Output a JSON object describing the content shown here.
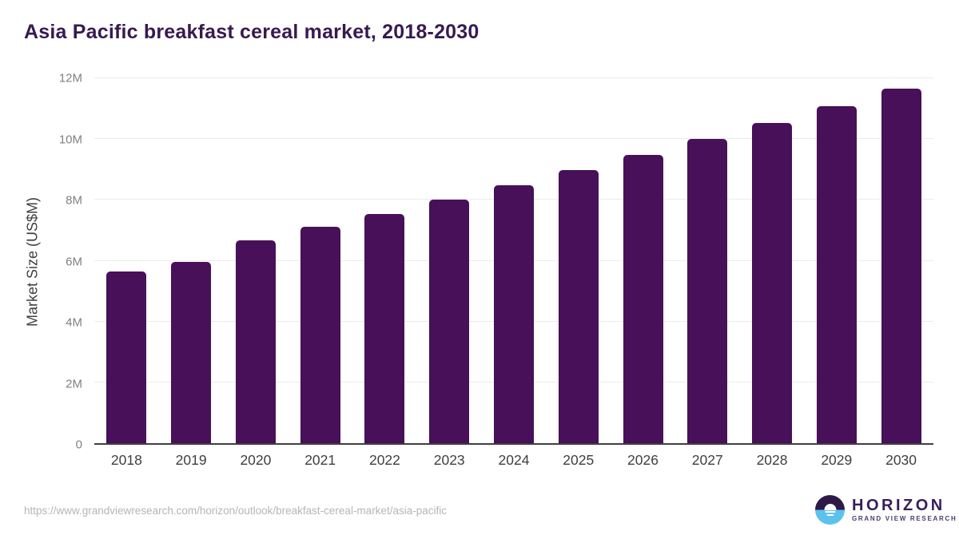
{
  "title": "Asia Pacific breakfast cereal market, 2018-2030",
  "chart_data": {
    "type": "bar",
    "title": "Asia Pacific breakfast cereal market, 2018-2030",
    "categories": [
      "2018",
      "2019",
      "2020",
      "2021",
      "2022",
      "2023",
      "2024",
      "2025",
      "2026",
      "2027",
      "2028",
      "2029",
      "2030"
    ],
    "values": [
      5.65,
      5.97,
      6.67,
      7.11,
      7.53,
      8.0,
      8.47,
      8.99,
      9.49,
      10.01,
      10.54,
      11.08,
      11.66
    ],
    "unit": "M",
    "xlabel": "",
    "ylabel": "Market Size (US$M)",
    "ylim": [
      0,
      12
    ],
    "yticks": [
      {
        "label": "0",
        "value": 0
      },
      {
        "label": "2M",
        "value": 2
      },
      {
        "label": "4M",
        "value": 4
      },
      {
        "label": "6M",
        "value": 6
      },
      {
        "label": "8M",
        "value": 8
      },
      {
        "label": "10M",
        "value": 10
      },
      {
        "label": "12M",
        "value": 12
      }
    ],
    "gridline_values": [
      2,
      4,
      6,
      8,
      10,
      12
    ],
    "grid": true,
    "legend": "none",
    "bar_color": "#471058",
    "gridline_color": "#ebebeb",
    "title_color": "#371a50"
  },
  "footer": {
    "source_url": "https://www.grandviewresearch.com/horizon/outlook/breakfast-cereal-market/asia-pacific",
    "logo": {
      "name": "HORIZON",
      "tagline": "GRAND VIEW RESEARCH"
    }
  }
}
